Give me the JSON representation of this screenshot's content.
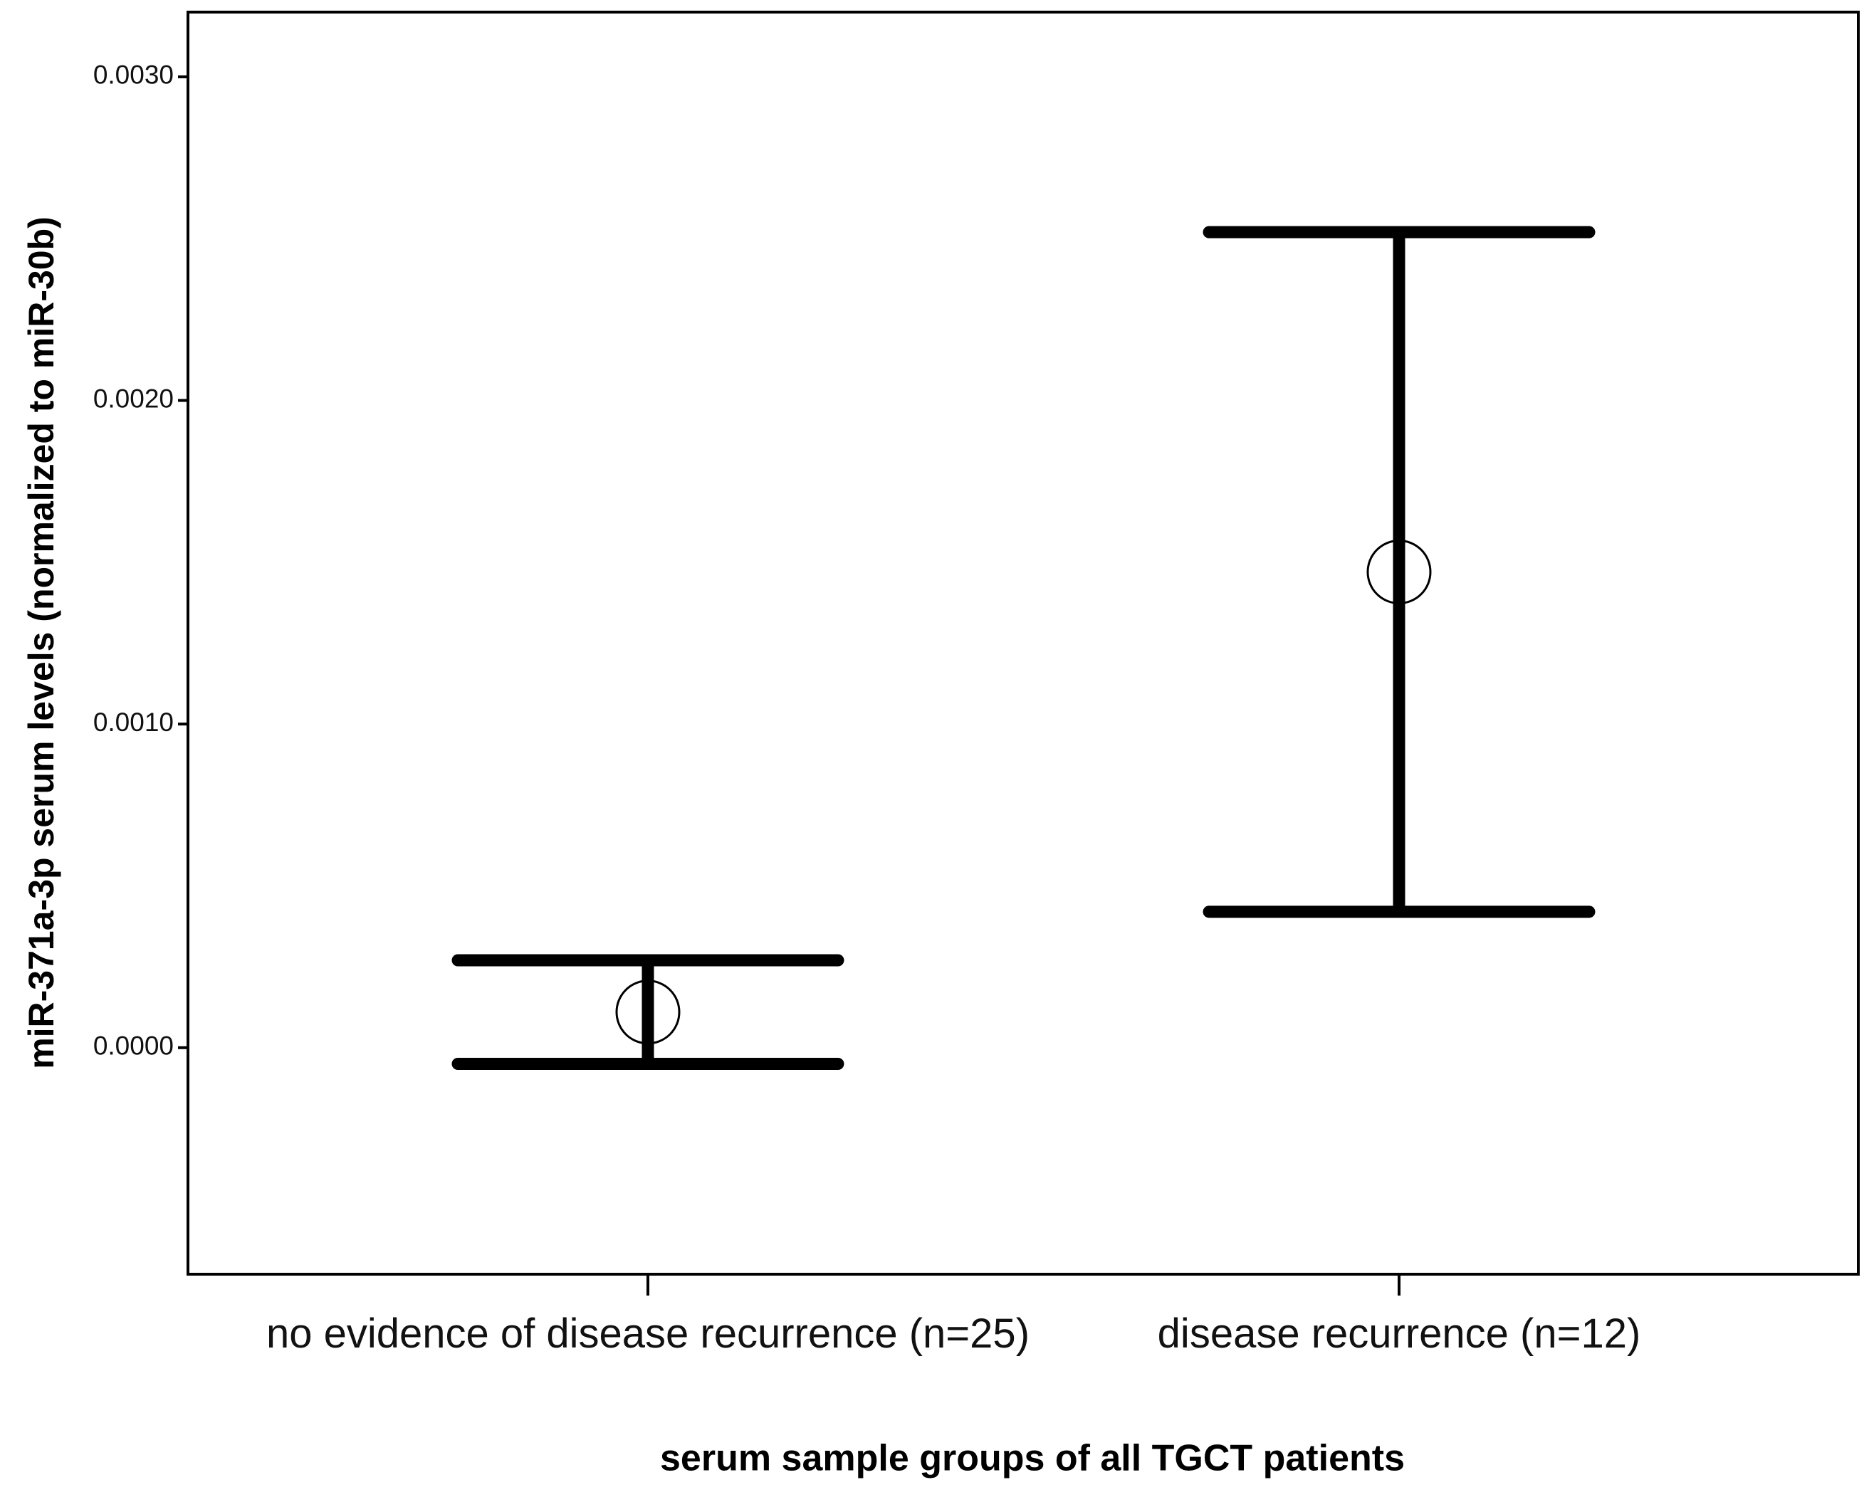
{
  "chart_data": {
    "type": "errorbar",
    "x_label": "serum sample groups of all TGCT patients",
    "y_label": "miR-371a-3p serum levels (normalized to miR-30b)",
    "categories": [
      "no evidence of disease recurrence (n=25)",
      "disease recurrence (n=12)"
    ],
    "values": [
      0.00011,
      0.00147
    ],
    "errors": [
      0.00016,
      0.00105
    ],
    "color": "#000000",
    "ylim": [
      -0.0007,
      0.0032
    ],
    "yticks": [
      {
        "value": 0,
        "label": "0.0000"
      },
      {
        "value": 0.001,
        "label": "0.0010"
      },
      {
        "value": 0.002,
        "label": "0.0020"
      },
      {
        "value": 0.003,
        "label": "0.0030"
      }
    ]
  }
}
